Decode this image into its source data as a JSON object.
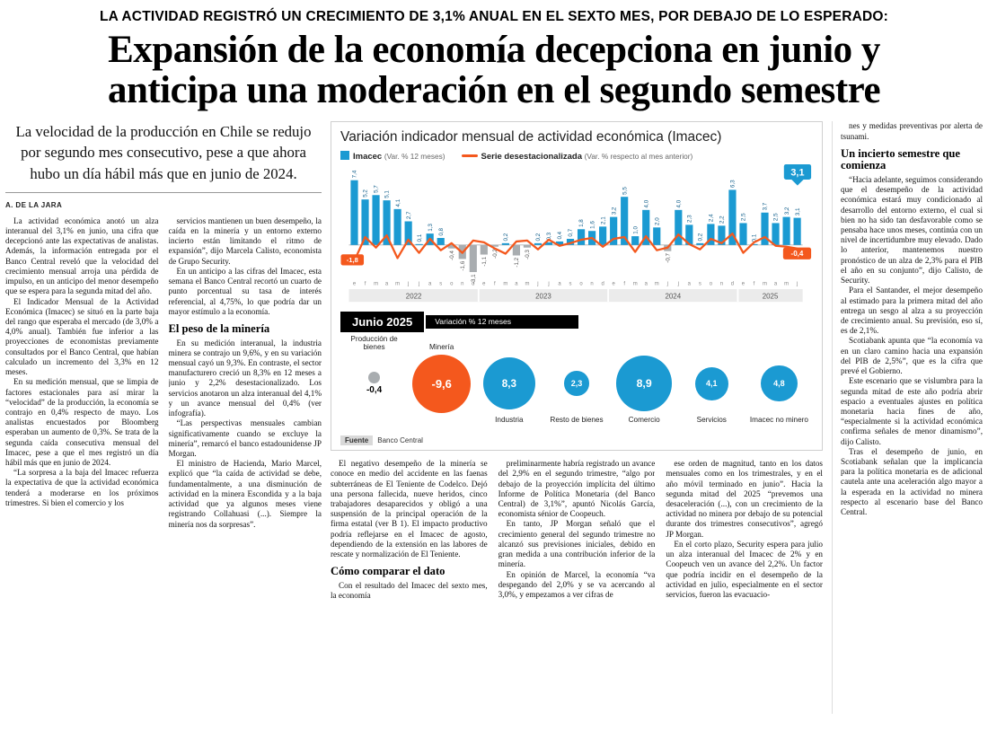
{
  "kicker": "LA ACTIVIDAD REGISTRÓ UN CRECIMIENTO DE 3,1% ANUAL EN EL SEXTO MES, POR DEBAJO DE LO ESPERADO:",
  "headline": {
    "line1": "Expansión de la economía decepciona en junio y",
    "line2": "anticipa una moderación en el segundo semestre"
  },
  "lede": "La velocidad de la producción en Chile se redujo por segundo mes consecutivo, pese a que ahora hubo un día hábil más que en junio de 2024.",
  "byline": "A. DE LA JARA",
  "article": {
    "col1": [
      {
        "p": "La actividad económica anotó un alza interanual del 3,1% en junio, una cifra que decepcionó ante las expectativas de analistas. Además, la información entregada por el Banco Central reveló que la velocidad del crecimiento mensual arroja una pérdida de impulso, en un anticipo del menor desempeño que se espera para la segunda mitad del año."
      },
      {
        "p": "El Indicador Mensual de la Actividad Económica (Imacec) se situó en la parte baja del rango que esperaba el mercado (de 3,0% a 4,0% anual). También fue inferior a las proyecciones de economistas previamente consultados por el Banco Central, que habían calculado un incremento del 3,3% en 12 meses."
      },
      {
        "p": "En su medición mensual, que se limpia de factores estacionales para así mirar la “velocidad” de la producción, la economía se contrajo en 0,4% respecto de mayo. Los analistas encuestados por Bloomberg esperaban un aumento de 0,3%. Se trata de la segunda caída consecutiva mensual del Imacec, pese a que el mes registró un día hábil más que en junio de 2024."
      },
      {
        "p": "“La sorpresa a la baja del Imacec refuerza la expectativa de que la actividad económica tenderá a moderarse en los próximos trimestres. Si bien el comercio y los"
      }
    ],
    "col2": [
      {
        "p": "servicios mantienen un buen desempeño, la caída en la minería y un entorno externo incierto están limitando el ritmo de expansión”, dijo Marcela Calisto, economista de Grupo Security."
      },
      {
        "p": "En un anticipo a las cifras del Imacec, esta semana el Banco Central recortó un cuarto de punto porcentual su tasa de interés referencial, al 4,75%, lo que podría dar un mayor estímulo a la economía."
      },
      {
        "subhead": "El peso de la minería"
      },
      {
        "p": "En su medición interanual, la industria minera se contrajo un 9,6%, y en su variación mensual cayó un 9,3%. En contraste, el sector manufacturero creció un 8,3% en 12 meses a junio y 2,2% desestacionalizado. Los servicios anotaron un alza interanual del 4,1% y un avance mensual del 0,4% (ver infografía)."
      },
      {
        "p": "“Las perspectivas mensuales cambian significativamente cuando se excluye la minería”, remarcó el banco estadounidense JP Morgan."
      },
      {
        "p": "El ministro de Hacienda, Mario Marcel, explicó que “la caída de actividad se debe, fundamentalmente, a una disminución de actividad en la minera Escondida y a la baja actividad que ya algunos meses viene registrando Collahuasi (...). Siempre la minería nos da sorpresas”."
      }
    ],
    "col3": [
      {
        "p": "El negativo desempeño de la minería se conoce en medio del accidente en las faenas subterráneas de El Teniente de Codelco. Dejó una persona fallecida, nueve heridos, cinco trabajadores desaparecidos y obligó a una suspensión de la principal operación de la firma estatal (ver B 1). El impacto productivo podría reflejarse en el Imacec de agosto, dependiendo de la extensión en las labores de rescate y normalización de El Teniente."
      },
      {
        "subhead": "Cómo comparar el dato"
      },
      {
        "p": "Con el resultado del Imacec del sexto mes, la economía"
      }
    ],
    "col4": [
      {
        "p": "preliminarmente habría registrado un avance del 2,9% en el segundo trimestre, “algo por debajo de la proyección implícita del último Informe de Política Monetaria (del Banco Central) de 3,1%”, apuntó Nicolás García, economista sénior de Coopeuch."
      },
      {
        "p": "En tanto, JP Morgan señaló que el crecimiento general del segundo trimestre no alcanzó sus previsiones iniciales, debido en gran medida a una contribución inferior de la minería."
      },
      {
        "p": "En opinión de Marcel, la economía “va despegando del 2,0% y se va acercando al 3,0%, y empezamos a ver cifras de"
      }
    ],
    "col5": [
      {
        "p": "ese orden de magnitud, tanto en los datos mensuales como en los trimestrales, y en el año móvil terminado en junio”. Hacia la segunda mitad del 2025 “prevemos una desaceleración (...), con un crecimiento de la actividad no minera por debajo de su potencial durante dos trimestres consecutivos”, agregó JP Morgan."
      },
      {
        "p": "En el corto plazo, Security espera para julio un alza interanual del Imacec de 2% y en Coopeuch ven un avance del 2,2%. Un factor que podría incidir en el desempeño de la actividad en julio, especialmente en el sector servicios, fueron las evacuacio-"
      }
    ],
    "col6": [
      {
        "p": "nes y medidas preventivas por alerta de tsunami."
      },
      {
        "subhead": "Un incierto semestre que comienza"
      },
      {
        "p": "“Hacia adelante, seguimos considerando que el desempeño de la actividad económica estará muy condicionado al desarrollo del entorno externo, el cual si bien no ha sido tan desfavorable como se pensaba hace unos meses, continúa con un nivel de incertidumbre muy elevado. Dado lo anterior, mantenemos nuestro pronóstico de un alza de 2,3% para el PIB el año en su conjunto”, dijo Calisto, de Security."
      },
      {
        "p": "Para el Santander, el mejor desempeño al estimado para la primera mitad del año entrega un sesgo al alza a su proyección de crecimiento anual. Su previsión, eso sí, es de 2,1%."
      },
      {
        "p": "Scotiabank apunta que “la economía va en un claro camino hacia una expansión del PIB de 2,5%”, que es la cifra que prevé el Gobierno."
      },
      {
        "p": "Este escenario que se vislumbra para la segunda mitad de este año podría abrir espacio a eventuales ajustes en política monetaria hacia fines de año, “especialmente si la actividad económica confirma señales de menor dinamismo”, dijo Calisto."
      },
      {
        "p": "Tras el desempeño de junio, en Scotiabank señalan que la implicancia para la política monetaria es de adicional cautela ante una aceleración algo mayor a la esperada en la actividad no minera respecto al escenario base del Banco Central."
      }
    ]
  },
  "chart_data": [
    {
      "type": "bar",
      "title": "Variación indicador mensual de actividad económica (Imacec)",
      "legend": [
        {
          "label": "Imacec",
          "note": "(Var. % 12 meses)",
          "color": "#1b9ad2",
          "marker": "square"
        },
        {
          "label": "Serie desestacionalizada",
          "note": "(Var. % respecto al mes anterior)",
          "color": "#f4581d",
          "marker": "line"
        }
      ],
      "colors": {
        "bar": "#1b9ad2",
        "bar_negative": "#a9adb0",
        "line": "#f4581d"
      },
      "x_months": [
        "e",
        "f",
        "m",
        "a",
        "m",
        "j",
        "j",
        "a",
        "s",
        "o",
        "n",
        "d",
        "e",
        "f",
        "m",
        "a",
        "m",
        "j",
        "j",
        "a",
        "s",
        "o",
        "n",
        "d",
        "e",
        "f",
        "m",
        "a",
        "m",
        "j",
        "j",
        "a",
        "s",
        "o",
        "n",
        "d",
        "e",
        "f",
        "m",
        "a",
        "m",
        "j"
      ],
      "years": [
        {
          "label": "2022",
          "months": 12
        },
        {
          "label": "2023",
          "months": 12
        },
        {
          "label": "2024",
          "months": 12
        },
        {
          "label": "2025",
          "months": 6
        }
      ],
      "ylim": [
        -4,
        8
      ],
      "series": [
        {
          "name": "Imacec (Var. % 12 meses)",
          "type": "bar",
          "values": [
            7.4,
            5.2,
            5.7,
            5.1,
            4.1,
            2.7,
            0.1,
            1.3,
            0.8,
            -0.4,
            -1.6,
            -3.1,
            -1.1,
            -0.2,
            0.2,
            -1.2,
            -0.3,
            0.2,
            0.3,
            0.4,
            0.7,
            1.8,
            1.6,
            2.1,
            3.2,
            5.5,
            1.0,
            4.0,
            2.0,
            -0.7,
            4.0,
            2.3,
            0.2,
            2.4,
            2.2,
            6.3,
            2.5,
            0.1,
            3.7,
            2.5,
            3.2,
            3.1
          ]
        },
        {
          "name": "Serie desestacionalizada (Var. % respecto al mes anterior)",
          "type": "line",
          "values_estimated": true,
          "labeled_points": {
            "first": -1.8,
            "last": -0.4
          },
          "values": [
            -1.8,
            0.9,
            -0.3,
            1.1,
            -1.5,
            0.6,
            -0.9,
            0.7,
            -0.6,
            0.2,
            -0.9,
            0.5,
            0.3,
            -0.4,
            -1.0,
            0.4,
            0.5,
            -0.5,
            0.6,
            -0.1,
            0.2,
            0.6,
            0.8,
            -0.2,
            0.7,
            0.9,
            -0.8,
            1.0,
            -0.6,
            -0.3,
            1.2,
            0.1,
            -0.5,
            0.7,
            0.2,
            1.3,
            -0.9,
            0.3,
            0.9,
            -0.1,
            -0.2,
            -0.4
          ]
        }
      ],
      "callouts": [
        {
          "text": "-1,8",
          "series": "Serie desestacionalizada",
          "position": "inicio",
          "color": "#f4581d"
        },
        {
          "text": "3,1",
          "series": "Imacec",
          "position": "junio 2025",
          "color": "#1b9ad2"
        },
        {
          "text": "-0,4",
          "series": "Serie desestacionalizada",
          "position": "junio 2025",
          "color": "#f4581d"
        }
      ]
    },
    {
      "type": "bubble",
      "panel_label": "Junio 2025",
      "panel_note": "Variación % 12 meses",
      "items": [
        {
          "label": "Producción de bienes",
          "value": -0.4,
          "display": "-0,4",
          "color": "#a9adb0",
          "label_pos": "top",
          "value_inside": false
        },
        {
          "label": "Minería",
          "value": -9.6,
          "display": "-9,6",
          "color": "#f4581d",
          "label_pos": "top"
        },
        {
          "label": "Industria",
          "value": 8.3,
          "display": "8,3",
          "color": "#1b9ad2",
          "label_pos": "bottom"
        },
        {
          "label": "Resto de bienes",
          "value": 2.3,
          "display": "2,3",
          "color": "#1b9ad2",
          "label_pos": "bottom"
        },
        {
          "label": "Comercio",
          "value": 8.9,
          "display": "8,9",
          "color": "#1b9ad2",
          "label_pos": "bottom"
        },
        {
          "label": "Servicios",
          "value": 4.1,
          "display": "4,1",
          "color": "#1b9ad2",
          "label_pos": "bottom"
        },
        {
          "label": "Imacec no minero",
          "value": 4.8,
          "display": "4,8",
          "color": "#1b9ad2",
          "label_pos": "bottom"
        }
      ],
      "source_label": "Fuente",
      "source": "Banco Central"
    }
  ]
}
